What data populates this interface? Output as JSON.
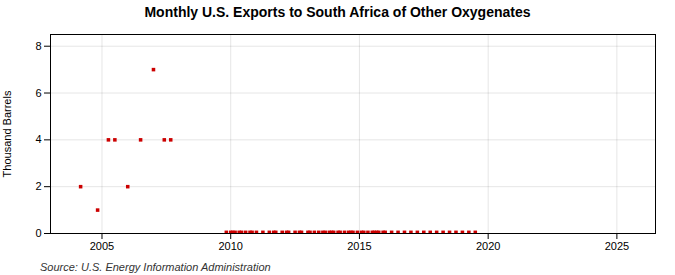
{
  "chart_data": {
    "type": "scatter",
    "title": "Monthly U.S. Exports to South Africa of Other Oxygenates",
    "ylabel": "Thousand Barrels",
    "source": "Source: U.S. Energy Information Administration",
    "color": "#cc0000",
    "marker": "square",
    "grid": true,
    "xlim": [
      2003.0,
      2026.5
    ],
    "ylim": [
      0,
      8.5
    ],
    "xticks": [
      2005,
      2010,
      2015,
      2020,
      2025
    ],
    "yticks": [
      0,
      2,
      4,
      6,
      8
    ],
    "x": [
      2004.17,
      2004.83,
      2005.25,
      2005.5,
      2006.0,
      2006.5,
      2007.0,
      2007.42,
      2007.67,
      2009.83,
      2010.0,
      2010.08,
      2010.17,
      2010.33,
      2010.42,
      2010.58,
      2010.75,
      2010.83,
      2011.0,
      2011.25,
      2011.5,
      2011.67,
      2011.75,
      2012.0,
      2012.17,
      2012.25,
      2012.5,
      2012.67,
      2012.75,
      2013.0,
      2013.08,
      2013.25,
      2013.42,
      2013.58,
      2013.67,
      2013.83,
      2013.92,
      2014.0,
      2014.17,
      2014.25,
      2014.42,
      2014.58,
      2014.67,
      2014.75,
      2014.92,
      2015.08,
      2015.17,
      2015.33,
      2015.5,
      2015.58,
      2015.67,
      2015.75,
      2015.92,
      2016.0,
      2016.25,
      2016.5,
      2016.75,
      2017.0,
      2017.25,
      2017.5,
      2017.75,
      2018.0,
      2018.25,
      2018.5,
      2018.75,
      2019.0,
      2019.25,
      2019.5
    ],
    "values": [
      2.0,
      1.0,
      4.0,
      4.0,
      2.0,
      4.0,
      7.0,
      4.0,
      4.0,
      0.05,
      0.05,
      0.05,
      0.05,
      0.05,
      0.05,
      0.05,
      0.05,
      0.05,
      0.05,
      0.05,
      0.05,
      0.05,
      0.05,
      0.05,
      0.05,
      0.05,
      0.05,
      0.05,
      0.05,
      0.05,
      0.05,
      0.05,
      0.05,
      0.05,
      0.05,
      0.05,
      0.05,
      0.05,
      0.05,
      0.05,
      0.05,
      0.05,
      0.05,
      0.05,
      0.05,
      0.05,
      0.05,
      0.05,
      0.05,
      0.05,
      0.05,
      0.05,
      0.05,
      0.05,
      0.05,
      0.05,
      0.05,
      0.05,
      0.05,
      0.05,
      0.05,
      0.05,
      0.05,
      0.05,
      0.05,
      0.05,
      0.05,
      0.05
    ]
  }
}
